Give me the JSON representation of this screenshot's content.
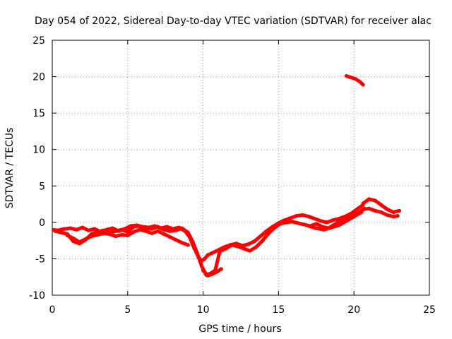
{
  "chart_data": {
    "type": "scatter",
    "title": "Day 054 of 2022, Sidereal Day-to-day VTEC variation (SDTVAR) for receiver alac",
    "xlabel": "GPS time / hours",
    "ylabel": "SDTVAR / TECUs",
    "xlim": [
      0,
      25
    ],
    "ylim": [
      -10,
      25
    ],
    "xticks": [
      0,
      5,
      10,
      15,
      20,
      25
    ],
    "yticks": [
      -10,
      -5,
      0,
      5,
      10,
      15,
      20,
      25
    ],
    "grid": true,
    "series": [
      {
        "name": "alac",
        "color": "#ff0000",
        "tracks": [
          {
            "x": [
              0.0,
              0.4,
              0.8,
              1.2,
              1.6,
              2.0,
              2.4,
              2.8,
              3.2,
              3.6,
              4.0,
              4.4,
              4.8,
              5.2,
              5.6,
              6.0,
              6.4,
              6.8,
              7.2,
              7.6,
              8.0,
              8.4,
              8.8,
              9.1,
              9.4,
              9.7,
              9.9,
              10.1,
              10.3,
              10.6,
              11.0,
              11.4,
              11.8,
              12.2,
              12.6,
              13.0,
              13.4,
              13.8,
              14.2,
              14.6,
              15.0,
              15.4,
              15.8,
              16.2,
              16.6,
              17.0,
              17.4,
              17.8,
              18.2,
              18.6,
              19.0,
              19.4,
              19.8,
              20.2,
              20.6
            ],
            "y": [
              -1.0,
              -1.1,
              -0.9,
              -0.8,
              -1.0,
              -0.7,
              -1.1,
              -0.9,
              -1.3,
              -1.0,
              -0.8,
              -1.2,
              -0.9,
              -0.5,
              -0.4,
              -0.6,
              -0.7,
              -0.5,
              -0.8,
              -0.6,
              -0.9,
              -0.7,
              -1.2,
              -2.0,
              -3.5,
              -4.8,
              -5.3,
              -5.0,
              -4.5,
              -4.2,
              -3.8,
              -3.4,
              -3.1,
              -2.9,
              -3.2,
              -3.0,
              -2.6,
              -1.9,
              -1.2,
              -0.6,
              -0.1,
              0.3,
              0.6,
              0.9,
              1.0,
              0.8,
              0.5,
              0.2,
              0.0,
              0.3,
              0.5,
              0.8,
              1.2,
              1.8,
              2.4
            ]
          },
          {
            "x": [
              0.2,
              0.6,
              1.0,
              1.4,
              1.8,
              2.2,
              2.6,
              3.0,
              3.4,
              3.8,
              4.2,
              4.6,
              5.0,
              5.4,
              5.8,
              6.2,
              6.6,
              7.0,
              7.4,
              7.8,
              8.2,
              8.6,
              9.0,
              9.3,
              9.6,
              9.9,
              10.2,
              10.5,
              10.8,
              11.1,
              11.5,
              11.9,
              12.3,
              12.7,
              13.1,
              13.5,
              13.9,
              14.3,
              14.7,
              15.1,
              15.5,
              15.9,
              16.3,
              16.7,
              17.1,
              17.5,
              17.9,
              18.3,
              18.7,
              19.1,
              19.5,
              19.9,
              20.3,
              20.7
            ],
            "y": [
              -1.2,
              -1.4,
              -1.6,
              -2.6,
              -2.9,
              -2.4,
              -1.6,
              -1.3,
              -1.1,
              -1.4,
              -1.2,
              -1.0,
              -1.3,
              -0.6,
              -0.5,
              -0.8,
              -0.9,
              -0.6,
              -1.0,
              -1.2,
              -1.1,
              -0.8,
              -1.4,
              -2.6,
              -4.2,
              -6.0,
              -7.2,
              -7.0,
              -6.6,
              -4.0,
              -3.6,
              -3.1,
              -3.3,
              -3.6,
              -3.9,
              -3.4,
              -2.6,
              -1.6,
              -0.8,
              -0.2,
              0.0,
              0.1,
              -0.1,
              -0.3,
              -0.5,
              -0.2,
              -0.6,
              -0.8,
              -0.3,
              0.2,
              0.6,
              0.9,
              1.3,
              1.9
            ]
          },
          {
            "x": [
              1.0,
              1.4,
              1.8,
              2.2,
              2.6,
              3.0,
              3.4,
              3.8,
              4.2,
              4.6,
              5.0,
              5.4,
              5.8,
              6.2,
              6.6,
              7.0,
              7.4,
              7.8,
              8.2,
              8.6,
              9.0
            ],
            "y": [
              -1.8,
              -2.2,
              -2.7,
              -2.3,
              -1.9,
              -1.7,
              -1.5,
              -1.6,
              -1.9,
              -1.7,
              -1.8,
              -1.3,
              -1.0,
              -1.2,
              -1.5,
              -1.2,
              -1.6,
              -2.0,
              -2.4,
              -2.8,
              -3.1
            ]
          },
          {
            "x": [
              10.0,
              10.3,
              10.6,
              10.9,
              11.2
            ],
            "y": [
              -6.6,
              -7.3,
              -7.1,
              -6.8,
              -6.4
            ]
          },
          {
            "x": [
              17.0,
              17.5,
              18.0,
              18.5,
              19.0,
              19.5,
              20.0,
              20.5
            ],
            "y": [
              -0.5,
              -0.8,
              -1.0,
              -0.7,
              -0.4,
              0.2,
              0.8,
              1.4
            ]
          },
          {
            "x": [
              20.6,
              21.0,
              21.4,
              21.8,
              22.2,
              22.6,
              23.0
            ],
            "y": [
              2.6,
              3.2,
              3.0,
              2.4,
              1.8,
              1.4,
              1.6
            ]
          },
          {
            "x": [
              20.6,
              21.0,
              21.4,
              21.8,
              22.2,
              22.6,
              22.9
            ],
            "y": [
              1.8,
              1.9,
              1.6,
              1.4,
              1.0,
              0.8,
              0.9
            ]
          },
          {
            "x": [
              19.5,
              19.8,
              20.1,
              20.4,
              20.6
            ],
            "y": [
              20.1,
              19.9,
              19.7,
              19.3,
              18.9
            ]
          }
        ]
      }
    ]
  }
}
